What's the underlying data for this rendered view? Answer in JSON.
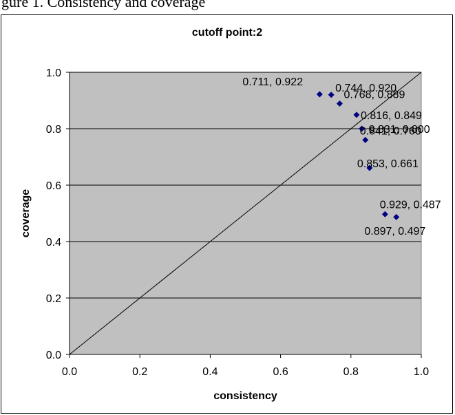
{
  "caption": "gure 1. Consistency and coverage",
  "chart_data": {
    "type": "scatter",
    "title": "cutoff point:2",
    "xlabel": "consistency",
    "ylabel": "coverage",
    "xlim": [
      0.0,
      1.0
    ],
    "ylim": [
      0.0,
      1.0
    ],
    "x_ticks": [
      "0.0",
      "0.2",
      "0.4",
      "0.6",
      "0.8",
      "1.0"
    ],
    "y_ticks": [
      "0.0",
      "0.2",
      "0.4",
      "0.6",
      "0.8",
      "1.0"
    ],
    "grid": "horizontal",
    "plot_background": "#c0c0c0",
    "marker_color": "#000080",
    "reference_line": "diagonal y = x",
    "points": [
      {
        "x": 0.711,
        "y": 0.922,
        "label": "0.711, 0.922"
      },
      {
        "x": 0.744,
        "y": 0.92,
        "label": "0.744, 0.920"
      },
      {
        "x": 0.768,
        "y": 0.889,
        "label": "0.768, 0.889"
      },
      {
        "x": 0.816,
        "y": 0.849,
        "label": "0.816, 0.849"
      },
      {
        "x": 0.831,
        "y": 0.8,
        "label": "0.831, 0.800"
      },
      {
        "x": 0.841,
        "y": 0.76,
        "label": "0.841, 0.760"
      },
      {
        "x": 0.853,
        "y": 0.661,
        "label": "0.853, 0.661"
      },
      {
        "x": 0.929,
        "y": 0.487,
        "label": "0.929, 0.487"
      },
      {
        "x": 0.897,
        "y": 0.497,
        "label": "0.897, 0.497"
      }
    ]
  }
}
